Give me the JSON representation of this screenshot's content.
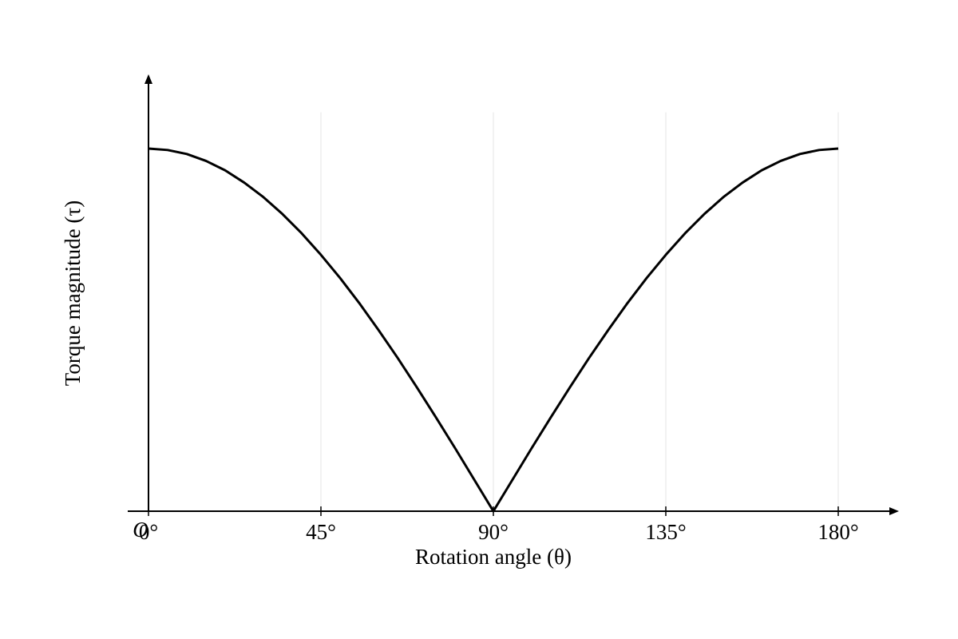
{
  "chart_data": {
    "type": "line",
    "x_label": "Rotation angle (θ)",
    "y_label": "Torque magnitude (τ)",
    "origin_label": "O",
    "x": [
      0,
      5,
      10,
      15,
      20,
      25,
      30,
      35,
      40,
      45,
      50,
      55,
      60,
      65,
      70,
      75,
      80,
      85,
      90,
      95,
      100,
      105,
      110,
      115,
      120,
      125,
      130,
      135,
      140,
      145,
      150,
      155,
      160,
      165,
      170,
      175,
      180
    ],
    "series": [
      {
        "color": "#000000",
        "values": [
          1,
          0.996,
          0.985,
          0.966,
          0.94,
          0.906,
          0.866,
          0.819,
          0.766,
          0.707,
          0.643,
          0.574,
          0.5,
          0.423,
          0.342,
          0.259,
          0.174,
          0.087,
          0,
          0.087,
          0.174,
          0.259,
          0.342,
          0.423,
          0.5,
          0.574,
          0.643,
          0.707,
          0.766,
          0.819,
          0.866,
          0.906,
          0.94,
          0.966,
          0.985,
          0.996,
          1
        ]
      }
    ],
    "xlim": [
      0,
      180
    ],
    "ylim": [
      0,
      1.1
    ],
    "xticks": [
      {
        "value": 0,
        "label": "0°"
      },
      {
        "value": 45,
        "label": "45°"
      },
      {
        "value": 90,
        "label": "90°"
      },
      {
        "value": 135,
        "label": "135°"
      },
      {
        "value": 180,
        "label": "180°"
      }
    ],
    "grid": true
  }
}
